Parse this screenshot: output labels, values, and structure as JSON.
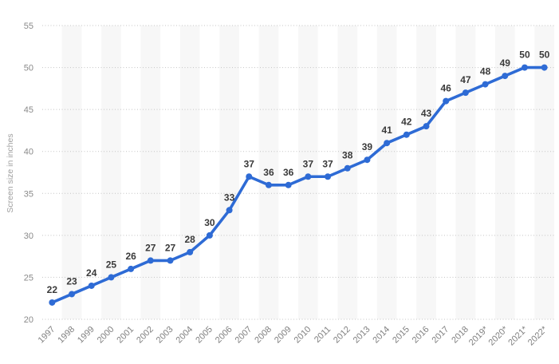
{
  "page": {
    "background": "#ffffff"
  },
  "chart_data": {
    "type": "line",
    "title": "",
    "xlabel": "",
    "ylabel": "Screen size in inches",
    "x": [
      "1997",
      "1998",
      "1999",
      "2000",
      "2001",
      "2002",
      "2003",
      "2004",
      "2005",
      "2006",
      "2007",
      "2008",
      "2009",
      "2010",
      "2011",
      "2012",
      "2013",
      "2014",
      "2015",
      "2016",
      "2017",
      "2018",
      "2019*",
      "2020*",
      "2021*",
      "2022*"
    ],
    "values": [
      22,
      23,
      24,
      25,
      26,
      27,
      27,
      28,
      30,
      33,
      37,
      36,
      36,
      37,
      37,
      38,
      39,
      41,
      42,
      43,
      46,
      47,
      48,
      49,
      50,
      50
    ],
    "ylim": [
      20,
      55
    ],
    "ytick_step": 5,
    "grid": "horizontal-dotted",
    "legend": "none",
    "data_labels": true,
    "colors": {
      "line": "#2e6bd5",
      "marker": "#2e6bd5",
      "band": "#f7f7f7",
      "gridline": "#c4c4c4",
      "axis_text": "#8a8a8a",
      "x_axis_text": "#808080",
      "data_label": "#3a3a3a",
      "background": "#ffffff"
    }
  }
}
